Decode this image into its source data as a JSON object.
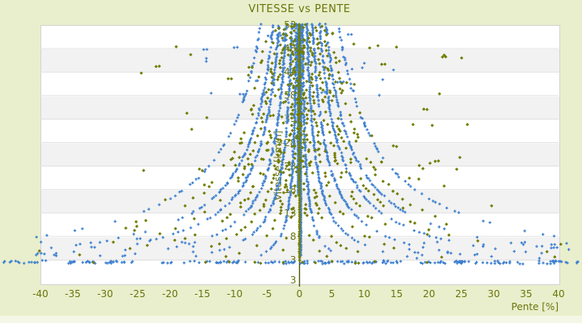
{
  "colors": {
    "background": "#e9efcc",
    "background_bottom_strip": "#f4f7e5",
    "plot_background": "#ffffff",
    "plot_stripe": "#f2f2f2",
    "gridline": "#e3e3e3",
    "plot_border": "#d3d3d3",
    "text": "#6a750c",
    "zero_axis_line": "#4d5909",
    "series_blue": "#3c7fd0",
    "series_olive": "#717d02"
  },
  "chart_data": {
    "type": "scatter",
    "title": "VITESSE vs PENTE",
    "xlabel": "Pente [%]",
    "ylabel": "Vitesse [km/h]",
    "xlim": [
      -40,
      40
    ],
    "ylim": [
      -2,
      53
    ],
    "x_ticks": [
      "-40",
      "-35",
      "-30",
      "-25",
      "-20",
      "-15",
      "-10",
      "-5",
      "0",
      "5",
      "10",
      "15",
      "20",
      "25",
      "30",
      "35",
      "40"
    ],
    "x_tick_values": [
      -40,
      -35,
      -30,
      -25,
      -20,
      -15,
      -10,
      -5,
      0,
      5,
      10,
      15,
      20,
      25,
      30,
      35,
      40
    ],
    "y_ticks": [
      "53",
      "48",
      "43",
      "38",
      "33",
      "28",
      "23",
      "18",
      "13",
      "8",
      "3"
    ],
    "y_tick_values": [
      53,
      48,
      43,
      38,
      33,
      28,
      23,
      18,
      13,
      8,
      3
    ],
    "y_axis_min_label": "3",
    "grid": "horizontal gridlines with alternating white/gray bands; y-axis drawn vertically at pente=0 inside plot",
    "legend": null,
    "description": "Speed vs slope point cloud: hyperbola-like arcs v = k/|pente| converging at top center, a dense vertical column at pente=0, a dense horizontal row of points at v≈2.5 spanning beyond both x limits (markers not clipped to plot area), and sparse scatter between arcs.",
    "point_generator": {
      "seed": 20,
      "marker_size_px": 3.5,
      "series": [
        {
          "name": "vitesse-points-blue",
          "marker": "plus",
          "color": "#3c7fd0",
          "arc_constants": [
            24,
            62,
            108,
            165,
            215,
            320
          ],
          "arc_keep": [
            0.9,
            0.9,
            0.85,
            0.8,
            0.7,
            0.45
          ],
          "arc_v_step": 0.3,
          "arc_jitter": 0.14,
          "arc_tail_v": 13,
          "arc_tail_keep_factor": 0.55,
          "axis_columns": [
            {
              "p": -0.22,
              "v_from": 17,
              "v_to": 53.2,
              "step": 0.3
            },
            {
              "p": 0.22,
              "v_from": 4,
              "v_to": 53.2,
              "step": 0.28
            }
          ],
          "bottom_row": {
            "count": 150,
            "p_range": [
              -46,
              43.5
            ],
            "v_mean": 2.5,
            "v_spread": 0.3,
            "twin_prob": 0.35
          },
          "scatter": [
            {
              "count": 34,
              "p_abs": [
                16,
                42
              ],
              "v_range": [
                3.2,
                7.5
              ],
              "left_bias": 0.62,
              "twin_prob": 0.3
            },
            {
              "count": 24,
              "p_abs": [
                1.5,
                15
              ],
              "v_range": [
                38,
                53.2
              ],
              "left_bias": 0.5,
              "twin_prob": 0.25
            }
          ]
        },
        {
          "name": "altitude-points-olive",
          "marker": "diamond",
          "color": "#717d02",
          "arc_constants": [
            15,
            40,
            82,
            135,
            190,
            260
          ],
          "arc_keep": [
            0.5,
            0.6,
            0.6,
            0.55,
            0.5,
            0.4
          ],
          "arc_v_step": 0.55,
          "arc_jitter": 0.35,
          "arc_tail_v": 12,
          "arc_tail_keep_factor": 0.6,
          "axis_columns": [
            {
              "p": 0,
              "v_from": 3,
              "v_to": 53.2,
              "step": 0.4
            }
          ],
          "bottom_row": {
            "count": 12,
            "p_range": [
              -42,
              42
            ],
            "v_mean": 2.5,
            "v_spread": 0.25,
            "twin_prob": 0.1
          },
          "scatter": [
            {
              "count": 60,
              "p_abs": [
                2,
                26
              ],
              "v_range": [
                20,
                50
              ],
              "left_bias": 0.45,
              "twin_prob": 0.15
            },
            {
              "count": 10,
              "p_abs": [
                10,
                32
              ],
              "v_range": [
                8,
                20
              ],
              "left_bias": 0.5,
              "twin_prob": 0.1
            }
          ]
        }
      ]
    }
  }
}
